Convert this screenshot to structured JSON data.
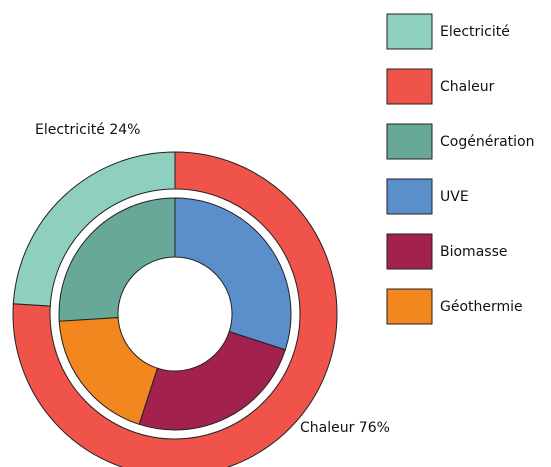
{
  "chart_data": {
    "type": "donut",
    "rings": [
      {
        "categories": [
          "Electricité",
          "Chaleur"
        ],
        "values": [
          24,
          76
        ],
        "value_labels": [
          "Electricité 24%",
          "Chaleur 76%"
        ],
        "colors": [
          "#8ecfbf",
          "#f0534a"
        ]
      },
      {
        "categories": [
          "Cogénération",
          "UVE",
          "Biomasse",
          "Géothermie"
        ],
        "values": [
          26,
          30,
          25,
          19
        ],
        "colors": [
          "#67a898",
          "#5b8fcb",
          "#a3214f",
          "#f2861f"
        ]
      }
    ],
    "legend": "right"
  }
}
